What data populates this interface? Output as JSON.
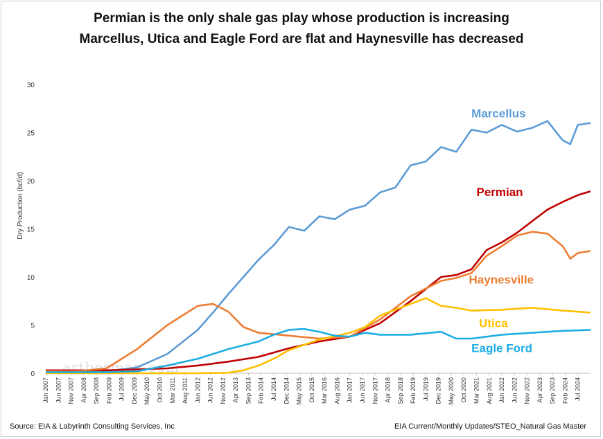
{
  "title": "Permian is the only shale gas play whose production is increasing",
  "subtitle": "Marcellus, Utica and Eagle Ford are flat and Haynesville has decreased",
  "source_left": "Source: EIA & Labyrinth Consulting Services, Inc",
  "source_right": "EIA Current/Monthly Updates/STEO_Natural Gas Master",
  "watermark": "artberman.com",
  "chart_data": {
    "type": "line",
    "ylabel": "Dry Production (bcf/d)",
    "ylim": [
      0,
      30
    ],
    "yticks": [
      0,
      5,
      10,
      15,
      20,
      25,
      30
    ],
    "xlim": [
      "Jan 2007",
      "Dec 2024"
    ],
    "xticks": [
      "Jan 2007",
      "Jun 2007",
      "Nov 2007",
      "Apr 2008",
      "Sep 2008",
      "Feb 2009",
      "Jul 2009",
      "Dec 2009",
      "May 2010",
      "Oct 2010",
      "Mar 2011",
      "Aug 2011",
      "Jan 2012",
      "Jun 2012",
      "Nov 2012",
      "Apr 2013",
      "Sep 2013",
      "Feb 2014",
      "Jul 2014",
      "Dec 2014",
      "May 2015",
      "Oct 2015",
      "Mar 2016",
      "Aug 2016",
      "Jan 2017",
      "Jun 2017",
      "Nov 2017",
      "Apr 2018",
      "Sep 2018",
      "Feb 2019",
      "Jul 2019",
      "Dec 2019",
      "May 2020",
      "Oct 2020",
      "Mar 2021",
      "Aug 2021",
      "Jan 2022",
      "Jun 2022",
      "Nov 2022",
      "Apr 2023",
      "Sep 2023",
      "Feb 2024",
      "Jul 2024"
    ],
    "grid": false,
    "series": [
      {
        "name": "Marcellus",
        "color": "#5b9bd5",
        "points": [
          [
            "Jan 2007",
            0.1
          ],
          [
            "Jan 2008",
            0.1
          ],
          [
            "Jan 2009",
            0.2
          ],
          [
            "Jan 2010",
            0.6
          ],
          [
            "Jan 2011",
            2.0
          ],
          [
            "Jan 2012",
            4.5
          ],
          [
            "Jul 2012",
            6.3
          ],
          [
            "Jan 2013",
            8.2
          ],
          [
            "Jul 2013",
            10.0
          ],
          [
            "Jan 2014",
            11.8
          ],
          [
            "Jul 2014",
            13.3
          ],
          [
            "Jan 2015",
            15.2
          ],
          [
            "Jul 2015",
            14.8
          ],
          [
            "Jan 2016",
            16.3
          ],
          [
            "Jul 2016",
            16.0
          ],
          [
            "Jan 2017",
            17.0
          ],
          [
            "Jul 2017",
            17.4
          ],
          [
            "Jan 2018",
            18.8
          ],
          [
            "Jul 2018",
            19.3
          ],
          [
            "Jan 2019",
            21.6
          ],
          [
            "Jul 2019",
            22.0
          ],
          [
            "Jan 2020",
            23.5
          ],
          [
            "Jul 2020",
            23.0
          ],
          [
            "Jan 2021",
            25.3
          ],
          [
            "Jul 2021",
            25.0
          ],
          [
            "Jan 2022",
            25.8
          ],
          [
            "Jul 2022",
            25.1
          ],
          [
            "Jan 2023",
            25.5
          ],
          [
            "Jul 2023",
            26.2
          ],
          [
            "Jan 2024",
            24.2
          ],
          [
            "Apr 2024",
            23.8
          ],
          [
            "Jul 2024",
            25.8
          ],
          [
            "Dec 2024",
            26.0
          ]
        ]
      },
      {
        "name": "Permian",
        "color": "#c00000",
        "points": [
          [
            "Jan 2007",
            0.3
          ],
          [
            "Jan 2008",
            0.3
          ],
          [
            "Jan 2009",
            0.3
          ],
          [
            "Jan 2010",
            0.4
          ],
          [
            "Jan 2011",
            0.5
          ],
          [
            "Jan 2012",
            0.8
          ],
          [
            "Jan 2013",
            1.2
          ],
          [
            "Jan 2014",
            1.7
          ],
          [
            "Jan 2015",
            2.6
          ],
          [
            "Jan 2016",
            3.3
          ],
          [
            "Jan 2017",
            3.8
          ],
          [
            "Jan 2018",
            5.2
          ],
          [
            "Jan 2019",
            7.5
          ],
          [
            "Jan 2020",
            10.0
          ],
          [
            "Jul 2020",
            10.2
          ],
          [
            "Jan 2021",
            10.8
          ],
          [
            "Jul 2021",
            12.8
          ],
          [
            "Jan 2022",
            13.6
          ],
          [
            "Jul 2022",
            14.6
          ],
          [
            "Jan 2023",
            15.8
          ],
          [
            "Jul 2023",
            17.0
          ],
          [
            "Jan 2024",
            17.8
          ],
          [
            "Jul 2024",
            18.5
          ],
          [
            "Dec 2024",
            18.9
          ]
        ]
      },
      {
        "name": "Haynesville",
        "color": "#ed7d31",
        "points": [
          [
            "Jan 2007",
            0.2
          ],
          [
            "Jan 2008",
            0.2
          ],
          [
            "Jan 2009",
            0.5
          ],
          [
            "Jan 2010",
            2.5
          ],
          [
            "Jan 2011",
            5.0
          ],
          [
            "Jan 2012",
            7.0
          ],
          [
            "Jul 2012",
            7.2
          ],
          [
            "Jan 2013",
            6.4
          ],
          [
            "Jul 2013",
            4.8
          ],
          [
            "Jan 2014",
            4.2
          ],
          [
            "Jan 2015",
            3.9
          ],
          [
            "Jan 2016",
            3.6
          ],
          [
            "Jan 2017",
            3.8
          ],
          [
            "Jan 2018",
            5.6
          ],
          [
            "Jan 2019",
            8.0
          ],
          [
            "Jan 2020",
            9.6
          ],
          [
            "Jul 2020",
            9.9
          ],
          [
            "Jan 2021",
            10.4
          ],
          [
            "Jul 2021",
            12.2
          ],
          [
            "Jan 2022",
            13.2
          ],
          [
            "Jul 2022",
            14.3
          ],
          [
            "Jan 2023",
            14.7
          ],
          [
            "Jul 2023",
            14.5
          ],
          [
            "Jan 2024",
            13.2
          ],
          [
            "Apr 2024",
            11.9
          ],
          [
            "Jul 2024",
            12.5
          ],
          [
            "Dec 2024",
            12.7
          ]
        ]
      },
      {
        "name": "Utica",
        "color": "#ffc000",
        "points": [
          [
            "Jan 2007",
            0.0
          ],
          [
            "Jan 2010",
            0.0
          ],
          [
            "Jan 2012",
            0.0
          ],
          [
            "Jan 2013",
            0.05
          ],
          [
            "Jul 2013",
            0.3
          ],
          [
            "Jan 2014",
            0.8
          ],
          [
            "Jul 2014",
            1.5
          ],
          [
            "Jan 2015",
            2.4
          ],
          [
            "Jan 2016",
            3.5
          ],
          [
            "Jan 2017",
            4.2
          ],
          [
            "Jul 2017",
            4.8
          ],
          [
            "Jan 2018",
            6.0
          ],
          [
            "Jan 2019",
            7.2
          ],
          [
            "Jul 2019",
            7.8
          ],
          [
            "Jan 2020",
            7.0
          ],
          [
            "Jul 2020",
            6.8
          ],
          [
            "Jan 2021",
            6.5
          ],
          [
            "Jan 2022",
            6.6
          ],
          [
            "Jan 2023",
            6.8
          ],
          [
            "Jan 2024",
            6.5
          ],
          [
            "Dec 2024",
            6.3
          ]
        ]
      },
      {
        "name": "Eagle Ford",
        "color": "#1cade4",
        "points": [
          [
            "Jan 2007",
            0.1
          ],
          [
            "Jan 2009",
            0.1
          ],
          [
            "Jan 2010",
            0.2
          ],
          [
            "Jan 2011",
            0.8
          ],
          [
            "Jan 2012",
            1.5
          ],
          [
            "Jan 2013",
            2.5
          ],
          [
            "Jan 2014",
            3.3
          ],
          [
            "Jul 2014",
            4.0
          ],
          [
            "Jan 2015",
            4.5
          ],
          [
            "Jul 2015",
            4.6
          ],
          [
            "Jan 2016",
            4.3
          ],
          [
            "Jul 2016",
            3.9
          ],
          [
            "Jan 2017",
            3.8
          ],
          [
            "Jul 2017",
            4.2
          ],
          [
            "Jan 2018",
            4.0
          ],
          [
            "Jan 2019",
            4.0
          ],
          [
            "Jan 2020",
            4.3
          ],
          [
            "Jul 2020",
            3.6
          ],
          [
            "Jan 2021",
            3.6
          ],
          [
            "Jan 2022",
            4.0
          ],
          [
            "Jan 2023",
            4.2
          ],
          [
            "Jan 2024",
            4.4
          ],
          [
            "Dec 2024",
            4.5
          ]
        ]
      }
    ]
  }
}
